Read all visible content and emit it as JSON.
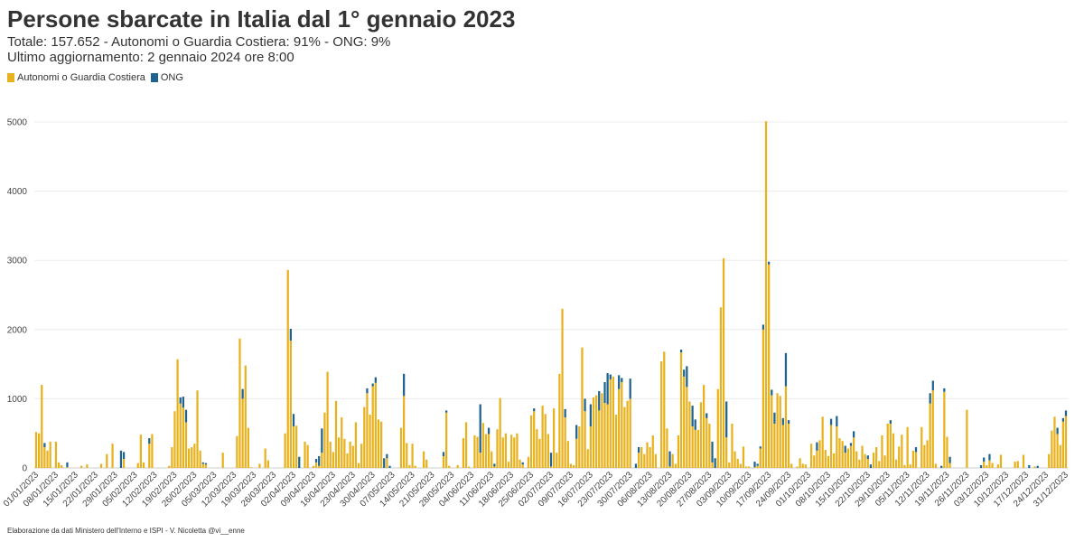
{
  "header": {
    "title": "Persone sbarcate in Italia dal 1° gennaio 2023",
    "subtitle_line1": "Totale: 157.652 - Autonomi o Guardia Costiera: 91% - ONG: 9%",
    "subtitle_line2": "Ultimo aggiornamento: 2 gennaio 2024 ore 8:00"
  },
  "legend": [
    {
      "label": "Autonomi o Guardia Costiera",
      "color": "#e8b21e"
    },
    {
      "label": "ONG",
      "color": "#1f6391"
    }
  ],
  "footer": {
    "credit": "Elaborazione da dati Ministero dell'Interno e ISPI - V. Nicoletta @vi__enne"
  },
  "chart_data": {
    "type": "bar",
    "stacked": true,
    "x_axis": "date",
    "x_start": "2023-01-01",
    "x_end": "2023-12-31",
    "ylim": [
      0,
      5300
    ],
    "yticks": [
      0,
      1000,
      2000,
      3000,
      4000,
      5000
    ],
    "grid": true,
    "legend_position": "top-left",
    "x_tick_labels": [
      "01/01/2023",
      "08/01/2023",
      "15/01/2023",
      "22/01/2023",
      "29/01/2023",
      "05/02/2023",
      "12/02/2023",
      "19/02/2023",
      "26/02/2023",
      "05/03/2023",
      "12/03/2023",
      "19/03/2023",
      "26/03/2023",
      "02/04/2023",
      "09/04/2023",
      "16/04/2023",
      "23/04/2023",
      "30/04/2023",
      "07/05/2023",
      "14/05/2023",
      "21/05/2023",
      "28/05/2023",
      "04/06/2023",
      "11/06/2023",
      "18/06/2023",
      "25/06/2023",
      "02/07/2023",
      "09/07/2023",
      "16/07/2023",
      "23/07/2023",
      "30/07/2023",
      "06/08/2023",
      "13/08/2023",
      "20/08/2023",
      "27/08/2023",
      "03/09/2023",
      "10/09/2023",
      "17/09/2023",
      "24/09/2023",
      "01/10/2023",
      "08/10/2023",
      "15/10/2023",
      "22/10/2023",
      "29/10/2023",
      "05/11/2023",
      "12/11/2023",
      "19/11/2023",
      "26/11/2023",
      "03/12/2023",
      "10/12/2023",
      "17/12/2023",
      "24/12/2023",
      "31/12/2023"
    ],
    "series": [
      {
        "name": "Autonomi o Guardia Costiera",
        "color": "#e8b21e"
      },
      {
        "name": "ONG",
        "color": "#1f6391"
      }
    ],
    "points": [
      [
        "2023-01-01",
        520,
        0
      ],
      [
        "2023-01-02",
        500,
        0
      ],
      [
        "2023-01-03",
        1200,
        0
      ],
      [
        "2023-01-04",
        300,
        60
      ],
      [
        "2023-01-05",
        250,
        0
      ],
      [
        "2023-01-06",
        380,
        0
      ],
      [
        "2023-01-07",
        0,
        0
      ],
      [
        "2023-01-08",
        380,
        0
      ],
      [
        "2023-01-09",
        80,
        0
      ],
      [
        "2023-01-10",
        40,
        0
      ],
      [
        "2023-01-11",
        0,
        0
      ],
      [
        "2023-01-12",
        10,
        70
      ],
      [
        "2023-01-17",
        30,
        0
      ],
      [
        "2023-01-19",
        50,
        0
      ],
      [
        "2023-01-24",
        60,
        0
      ],
      [
        "2023-01-26",
        200,
        0
      ],
      [
        "2023-01-28",
        350,
        0
      ],
      [
        "2023-01-31",
        0,
        250
      ],
      [
        "2023-02-01",
        130,
        100
      ],
      [
        "2023-02-06",
        70,
        0
      ],
      [
        "2023-02-07",
        480,
        0
      ],
      [
        "2023-02-08",
        80,
        0
      ],
      [
        "2023-02-10",
        350,
        80
      ],
      [
        "2023-02-11",
        490,
        0
      ],
      [
        "2023-02-17",
        30,
        0
      ],
      [
        "2023-02-18",
        300,
        0
      ],
      [
        "2023-02-19",
        820,
        0
      ],
      [
        "2023-02-20",
        1570,
        0
      ],
      [
        "2023-02-21",
        930,
        90
      ],
      [
        "2023-02-22",
        870,
        160
      ],
      [
        "2023-02-23",
        660,
        180
      ],
      [
        "2023-02-24",
        280,
        0
      ],
      [
        "2023-02-25",
        300,
        0
      ],
      [
        "2023-02-26",
        350,
        0
      ],
      [
        "2023-02-27",
        1120,
        0
      ],
      [
        "2023-02-28",
        250,
        0
      ],
      [
        "2023-03-01",
        60,
        20
      ],
      [
        "2023-03-02",
        50,
        20
      ],
      [
        "2023-03-08",
        220,
        0
      ],
      [
        "2023-03-13",
        460,
        0
      ],
      [
        "2023-03-14",
        1870,
        0
      ],
      [
        "2023-03-15",
        1000,
        140
      ],
      [
        "2023-03-16",
        1480,
        0
      ],
      [
        "2023-03-17",
        580,
        0
      ],
      [
        "2023-03-18",
        10,
        0
      ],
      [
        "2023-03-21",
        60,
        0
      ],
      [
        "2023-03-23",
        280,
        0
      ],
      [
        "2023-03-24",
        110,
        0
      ],
      [
        "2023-03-30",
        500,
        0
      ],
      [
        "2023-03-31",
        2860,
        0
      ],
      [
        "2023-04-01",
        1840,
        170
      ],
      [
        "2023-04-02",
        600,
        180
      ],
      [
        "2023-04-03",
        610,
        0
      ],
      [
        "2023-04-04",
        0,
        160
      ],
      [
        "2023-04-06",
        380,
        0
      ],
      [
        "2023-04-07",
        330,
        0
      ],
      [
        "2023-04-09",
        30,
        0
      ],
      [
        "2023-04-10",
        80,
        50
      ],
      [
        "2023-04-11",
        30,
        140
      ],
      [
        "2023-04-12",
        220,
        350
      ],
      [
        "2023-04-13",
        800,
        0
      ],
      [
        "2023-04-14",
        1390,
        0
      ],
      [
        "2023-04-15",
        380,
        0
      ],
      [
        "2023-04-16",
        230,
        0
      ],
      [
        "2023-04-17",
        970,
        0
      ],
      [
        "2023-04-18",
        440,
        0
      ],
      [
        "2023-04-19",
        730,
        0
      ],
      [
        "2023-04-20",
        420,
        0
      ],
      [
        "2023-04-21",
        210,
        0
      ],
      [
        "2023-04-22",
        380,
        0
      ],
      [
        "2023-04-23",
        320,
        0
      ],
      [
        "2023-04-24",
        660,
        0
      ],
      [
        "2023-04-25",
        70,
        0
      ],
      [
        "2023-04-26",
        350,
        0
      ],
      [
        "2023-04-27",
        880,
        0
      ],
      [
        "2023-04-28",
        1080,
        70
      ],
      [
        "2023-04-29",
        770,
        0
      ],
      [
        "2023-04-30",
        1180,
        40
      ],
      [
        "2023-05-01",
        1230,
        80
      ],
      [
        "2023-05-02",
        700,
        0
      ],
      [
        "2023-05-03",
        670,
        0
      ],
      [
        "2023-05-04",
        0,
        140
      ],
      [
        "2023-05-05",
        140,
        60
      ],
      [
        "2023-05-06",
        0,
        30
      ],
      [
        "2023-05-10",
        580,
        0
      ],
      [
        "2023-05-11",
        1040,
        320
      ],
      [
        "2023-05-12",
        360,
        0
      ],
      [
        "2023-05-13",
        40,
        0
      ],
      [
        "2023-05-14",
        350,
        0
      ],
      [
        "2023-05-15",
        30,
        0
      ],
      [
        "2023-05-18",
        240,
        0
      ],
      [
        "2023-05-19",
        120,
        0
      ],
      [
        "2023-05-25",
        170,
        60
      ],
      [
        "2023-05-26",
        800,
        30
      ],
      [
        "2023-05-27",
        30,
        0
      ],
      [
        "2023-05-30",
        40,
        0
      ],
      [
        "2023-06-01",
        430,
        0
      ],
      [
        "2023-06-02",
        660,
        0
      ],
      [
        "2023-06-03",
        20,
        0
      ],
      [
        "2023-06-05",
        470,
        0
      ],
      [
        "2023-06-06",
        450,
        0
      ],
      [
        "2023-06-07",
        220,
        700
      ],
      [
        "2023-06-08",
        650,
        0
      ],
      [
        "2023-06-09",
        490,
        0
      ],
      [
        "2023-06-10",
        490,
        90
      ],
      [
        "2023-06-11",
        240,
        0
      ],
      [
        "2023-06-12",
        20,
        40
      ],
      [
        "2023-06-13",
        560,
        0
      ],
      [
        "2023-06-14",
        1010,
        0
      ],
      [
        "2023-06-15",
        440,
        0
      ],
      [
        "2023-06-16",
        500,
        0
      ],
      [
        "2023-06-17",
        90,
        0
      ],
      [
        "2023-06-18",
        480,
        0
      ],
      [
        "2023-06-19",
        440,
        0
      ],
      [
        "2023-06-20",
        500,
        0
      ],
      [
        "2023-06-21",
        120,
        0
      ],
      [
        "2023-06-22",
        50,
        30
      ],
      [
        "2023-06-24",
        160,
        0
      ],
      [
        "2023-06-25",
        760,
        0
      ],
      [
        "2023-06-26",
        820,
        40
      ],
      [
        "2023-06-27",
        560,
        0
      ],
      [
        "2023-06-28",
        420,
        0
      ],
      [
        "2023-06-29",
        900,
        0
      ],
      [
        "2023-06-30",
        780,
        0
      ],
      [
        "2023-07-01",
        490,
        0
      ],
      [
        "2023-07-02",
        20,
        200
      ],
      [
        "2023-07-03",
        860,
        0
      ],
      [
        "2023-07-04",
        220,
        0
      ],
      [
        "2023-07-05",
        1360,
        0
      ],
      [
        "2023-07-06",
        2300,
        0
      ],
      [
        "2023-07-07",
        730,
        120
      ],
      [
        "2023-07-08",
        390,
        0
      ],
      [
        "2023-07-09",
        60,
        0
      ],
      [
        "2023-07-10",
        40,
        0
      ],
      [
        "2023-07-11",
        420,
        200
      ],
      [
        "2023-07-12",
        600,
        0
      ],
      [
        "2023-07-13",
        1740,
        0
      ],
      [
        "2023-07-14",
        820,
        180
      ],
      [
        "2023-07-15",
        270,
        0
      ],
      [
        "2023-07-16",
        600,
        320
      ],
      [
        "2023-07-17",
        1020,
        0
      ],
      [
        "2023-07-18",
        1050,
        0
      ],
      [
        "2023-07-19",
        830,
        280
      ],
      [
        "2023-07-20",
        1080,
        0
      ],
      [
        "2023-07-21",
        940,
        300
      ],
      [
        "2023-07-22",
        920,
        450
      ],
      [
        "2023-07-23",
        1280,
        70
      ],
      [
        "2023-07-24",
        1320,
        0
      ],
      [
        "2023-07-25",
        770,
        0
      ],
      [
        "2023-07-26",
        1140,
        200
      ],
      [
        "2023-07-27",
        1240,
        60
      ],
      [
        "2023-07-28",
        880,
        0
      ],
      [
        "2023-07-29",
        970,
        0
      ],
      [
        "2023-07-30",
        1000,
        290
      ],
      [
        "2023-08-01",
        0,
        60
      ],
      [
        "2023-08-02",
        220,
        80
      ],
      [
        "2023-08-03",
        300,
        0
      ],
      [
        "2023-08-04",
        200,
        0
      ],
      [
        "2023-08-05",
        370,
        0
      ],
      [
        "2023-08-06",
        300,
        0
      ],
      [
        "2023-08-07",
        470,
        0
      ],
      [
        "2023-08-08",
        200,
        0
      ],
      [
        "2023-08-10",
        1540,
        0
      ],
      [
        "2023-08-11",
        1680,
        0
      ],
      [
        "2023-08-12",
        570,
        0
      ],
      [
        "2023-08-13",
        20,
        220
      ],
      [
        "2023-08-14",
        200,
        0
      ],
      [
        "2023-08-15",
        60,
        0
      ],
      [
        "2023-08-16",
        470,
        0
      ],
      [
        "2023-08-17",
        1670,
        40
      ],
      [
        "2023-08-18",
        1320,
        100
      ],
      [
        "2023-08-19",
        1170,
        300
      ],
      [
        "2023-08-20",
        960,
        0
      ],
      [
        "2023-08-21",
        600,
        300
      ],
      [
        "2023-08-22",
        550,
        150
      ],
      [
        "2023-08-23",
        550,
        0
      ],
      [
        "2023-08-24",
        950,
        0
      ],
      [
        "2023-08-25",
        1200,
        0
      ],
      [
        "2023-08-26",
        720,
        70
      ],
      [
        "2023-08-27",
        640,
        0
      ],
      [
        "2023-08-28",
        80,
        300
      ],
      [
        "2023-08-29",
        0,
        140
      ],
      [
        "2023-08-30",
        1140,
        0
      ],
      [
        "2023-08-31",
        2320,
        0
      ],
      [
        "2023-09-01",
        3030,
        0
      ],
      [
        "2023-09-02",
        440,
        520
      ],
      [
        "2023-09-03",
        80,
        0
      ],
      [
        "2023-09-04",
        640,
        0
      ],
      [
        "2023-09-05",
        240,
        0
      ],
      [
        "2023-09-06",
        130,
        0
      ],
      [
        "2023-09-07",
        60,
        0
      ],
      [
        "2023-09-08",
        310,
        0
      ],
      [
        "2023-09-09",
        20,
        0
      ],
      [
        "2023-09-10",
        20,
        0
      ],
      [
        "2023-09-12",
        10,
        80
      ],
      [
        "2023-09-13",
        30,
        30
      ],
      [
        "2023-09-14",
        280,
        30
      ],
      [
        "2023-09-15",
        2000,
        70
      ],
      [
        "2023-09-16",
        5010,
        0
      ],
      [
        "2023-09-17",
        2940,
        40
      ],
      [
        "2023-09-18",
        1050,
        80
      ],
      [
        "2023-09-19",
        640,
        160
      ],
      [
        "2023-09-20",
        1080,
        0
      ],
      [
        "2023-09-21",
        1040,
        0
      ],
      [
        "2023-09-22",
        620,
        100
      ],
      [
        "2023-09-23",
        1180,
        480
      ],
      [
        "2023-09-24",
        640,
        50
      ],
      [
        "2023-09-25",
        60,
        0
      ],
      [
        "2023-09-27",
        20,
        0
      ],
      [
        "2023-09-28",
        140,
        0
      ],
      [
        "2023-09-29",
        60,
        0
      ],
      [
        "2023-09-30",
        50,
        0
      ],
      [
        "2023-10-02",
        350,
        0
      ],
      [
        "2023-10-03",
        180,
        0
      ],
      [
        "2023-10-04",
        250,
        120
      ],
      [
        "2023-10-05",
        400,
        0
      ],
      [
        "2023-10-06",
        740,
        0
      ],
      [
        "2023-10-07",
        260,
        0
      ],
      [
        "2023-10-08",
        170,
        0
      ],
      [
        "2023-10-09",
        620,
        90
      ],
      [
        "2023-10-10",
        210,
        0
      ],
      [
        "2023-10-11",
        600,
        150
      ],
      [
        "2023-10-12",
        430,
        0
      ],
      [
        "2023-10-13",
        390,
        0
      ],
      [
        "2023-10-14",
        220,
        100
      ],
      [
        "2023-10-15",
        280,
        0
      ],
      [
        "2023-10-16",
        320,
        40
      ],
      [
        "2023-10-17",
        440,
        90
      ],
      [
        "2023-10-18",
        240,
        0
      ],
      [
        "2023-10-19",
        120,
        0
      ],
      [
        "2023-10-20",
        320,
        0
      ],
      [
        "2023-10-21",
        200,
        0
      ],
      [
        "2023-10-22",
        130,
        50
      ],
      [
        "2023-10-23",
        0,
        50
      ],
      [
        "2023-10-24",
        220,
        0
      ],
      [
        "2023-10-25",
        300,
        0
      ],
      [
        "2023-10-26",
        100,
        0
      ],
      [
        "2023-10-27",
        470,
        0
      ],
      [
        "2023-10-28",
        180,
        0
      ],
      [
        "2023-10-29",
        640,
        0
      ],
      [
        "2023-10-30",
        640,
        50
      ],
      [
        "2023-10-31",
        500,
        0
      ],
      [
        "2023-11-01",
        120,
        0
      ],
      [
        "2023-11-02",
        310,
        0
      ],
      [
        "2023-11-03",
        480,
        0
      ],
      [
        "2023-11-04",
        40,
        0
      ],
      [
        "2023-11-05",
        590,
        0
      ],
      [
        "2023-11-06",
        50,
        0
      ],
      [
        "2023-11-07",
        250,
        0
      ],
      [
        "2023-11-08",
        230,
        70
      ],
      [
        "2023-11-09",
        0,
        0
      ],
      [
        "2023-11-10",
        590,
        0
      ],
      [
        "2023-11-11",
        330,
        0
      ],
      [
        "2023-11-12",
        400,
        0
      ],
      [
        "2023-11-13",
        930,
        150
      ],
      [
        "2023-11-14",
        1120,
        140
      ],
      [
        "2023-11-15",
        60,
        0
      ],
      [
        "2023-11-17",
        0,
        30
      ],
      [
        "2023-11-18",
        1100,
        50
      ],
      [
        "2023-11-19",
        450,
        0
      ],
      [
        "2023-11-20",
        70,
        90
      ],
      [
        "2023-11-21",
        0,
        0
      ],
      [
        "2023-11-26",
        840,
        0
      ],
      [
        "2023-12-01",
        0,
        40
      ],
      [
        "2023-12-02",
        90,
        60
      ],
      [
        "2023-12-03",
        40,
        0
      ],
      [
        "2023-12-04",
        110,
        90
      ],
      [
        "2023-12-05",
        70,
        0
      ],
      [
        "2023-12-07",
        50,
        0
      ],
      [
        "2023-12-08",
        190,
        0
      ],
      [
        "2023-12-13",
        90,
        0
      ],
      [
        "2023-12-14",
        100,
        0
      ],
      [
        "2023-12-16",
        190,
        0
      ],
      [
        "2023-12-18",
        0,
        40
      ],
      [
        "2023-12-20",
        20,
        0
      ],
      [
        "2023-12-21",
        0,
        30
      ],
      [
        "2023-12-25",
        200,
        0
      ],
      [
        "2023-12-26",
        540,
        0
      ],
      [
        "2023-12-27",
        740,
        0
      ],
      [
        "2023-12-28",
        490,
        90
      ],
      [
        "2023-12-29",
        330,
        0
      ],
      [
        "2023-12-30",
        670,
        50
      ],
      [
        "2023-12-31",
        750,
        80
      ]
    ]
  }
}
